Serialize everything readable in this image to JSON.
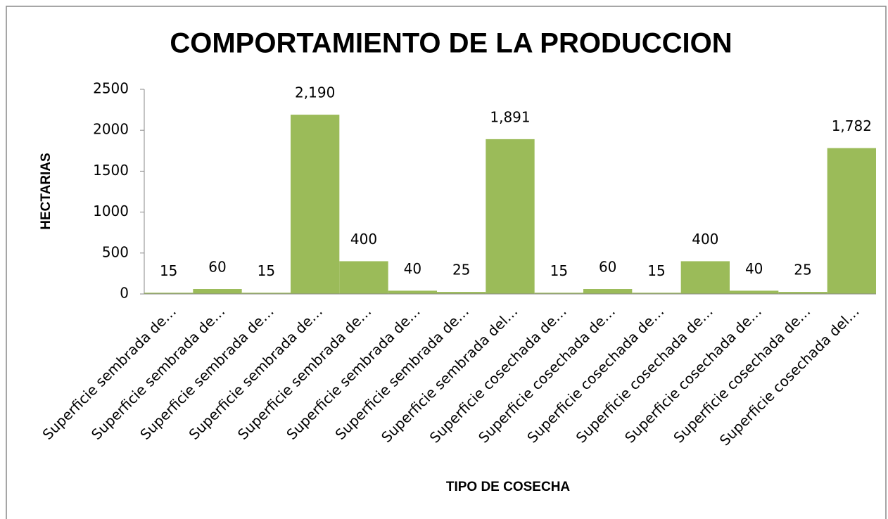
{
  "chart_data": {
    "type": "bar",
    "title": "COMPORTAMIENTO  DE LA PRODUCCION",
    "x_label": "TIPO DE COSECHA",
    "y_label": "HECTARIAS",
    "categories": [
      "Superficie sembrada de…",
      "Superficie sembrada de…",
      "Superficie sembrada de…",
      "Superficie sembrada de…",
      "Superficie sembrada de…",
      "Superficie sembrada de…",
      "Superficie sembrada de…",
      "Superficie sembrada del…",
      "Superficie cosechada de…",
      "Superficie cosechada de…",
      "Superficie cosechada de…",
      "Superficie cosechada de…",
      "Superficie cosechada de…",
      "Superficie cosechada de…",
      "Superficie cosechada del…"
    ],
    "values": [
      15,
      60,
      15,
      2190,
      400,
      40,
      25,
      1891,
      15,
      60,
      15,
      400,
      40,
      25,
      1782
    ],
    "value_labels": [
      "15",
      "60",
      "15",
      "2,190",
      "400",
      "40",
      "25",
      "1,891",
      "15",
      "60",
      "15",
      "400",
      "40",
      "25",
      "1,782"
    ],
    "color": "#9bbb59",
    "ylim": [
      0,
      2500
    ],
    "yticks": [
      0,
      500,
      1000,
      1500,
      2000,
      2500
    ],
    "grid": false
  }
}
